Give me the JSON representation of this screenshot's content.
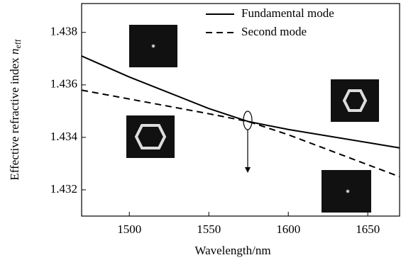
{
  "chart_data": {
    "type": "line",
    "xlabel": "Wavelength/nm",
    "ylabel": {
      "text": "Effective refractive index",
      "symbol": "n",
      "subscript": "eff"
    },
    "series": [
      {
        "name": "Fundamental mode",
        "color": "#000000",
        "dash": "solid",
        "x": [
          1470,
          1500,
          1550,
          1575,
          1600,
          1650,
          1670
        ],
        "values": [
          1.4371,
          1.4363,
          1.4351,
          1.4346,
          1.4343,
          1.4338,
          1.4336
        ]
      },
      {
        "name": "Second mode",
        "color": "#000000",
        "dash": "dashed",
        "x": [
          1470,
          1550,
          1575,
          1600,
          1670
        ],
        "values": [
          1.4358,
          1.4349,
          1.4346,
          1.4341,
          1.4325
        ]
      }
    ],
    "xlim": [
      1470,
      1670
    ],
    "xticks": [
      1500,
      1550,
      1600,
      1650
    ],
    "ylim": [
      1.431,
      1.4391
    ],
    "yticks": [
      1.432,
      1.434,
      1.436,
      1.438
    ],
    "grid": false,
    "legend": "top-right"
  }
}
